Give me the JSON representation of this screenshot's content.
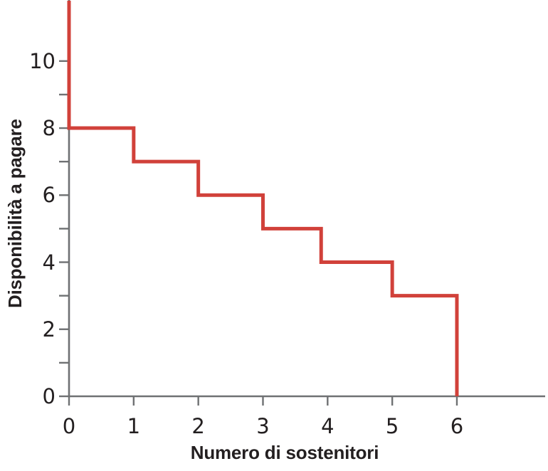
{
  "chart_data": {
    "type": "line",
    "subtype": "step-function-staircase",
    "title": "",
    "xlabel": "Numero di sostenitori",
    "ylabel": "Disponibilità a pagare",
    "xlim": [
      0,
      7.37
    ],
    "ylim": [
      0,
      11.8
    ],
    "x_ticks_labeled": [
      0,
      1,
      2,
      3,
      4,
      5,
      6
    ],
    "y_ticks_labeled": [
      0,
      2,
      4,
      6,
      8,
      10
    ],
    "y_ticks_minor": [
      1,
      3,
      5,
      7,
      9
    ],
    "grid": false,
    "legend": false,
    "line_color": "#d1413a",
    "axis_color": "#6f7173",
    "text_color": "#231f20",
    "background_color": "#ffffff",
    "series": [
      {
        "name": "curva-disponibilita-a-pagare",
        "note": "Step demand curve; the vertical segment at x=0 is clipped by the top edge of the plot; the 5-to-4 step is drawn slightly left of x=4 (at about x=3.9)",
        "points": [
          {
            "x": 0,
            "y": 11.8
          },
          {
            "x": 0,
            "y": 8
          },
          {
            "x": 1,
            "y": 8
          },
          {
            "x": 1,
            "y": 7
          },
          {
            "x": 2,
            "y": 7
          },
          {
            "x": 2,
            "y": 6
          },
          {
            "x": 3,
            "y": 6
          },
          {
            "x": 3,
            "y": 5
          },
          {
            "x": 3.9,
            "y": 5
          },
          {
            "x": 3.9,
            "y": 4
          },
          {
            "x": 5,
            "y": 4
          },
          {
            "x": 5,
            "y": 3
          },
          {
            "x": 6,
            "y": 3
          },
          {
            "x": 6,
            "y": 0
          }
        ],
        "willingness_to_pay_steps": [
          8,
          7,
          6,
          5,
          4,
          3
        ]
      }
    ]
  }
}
